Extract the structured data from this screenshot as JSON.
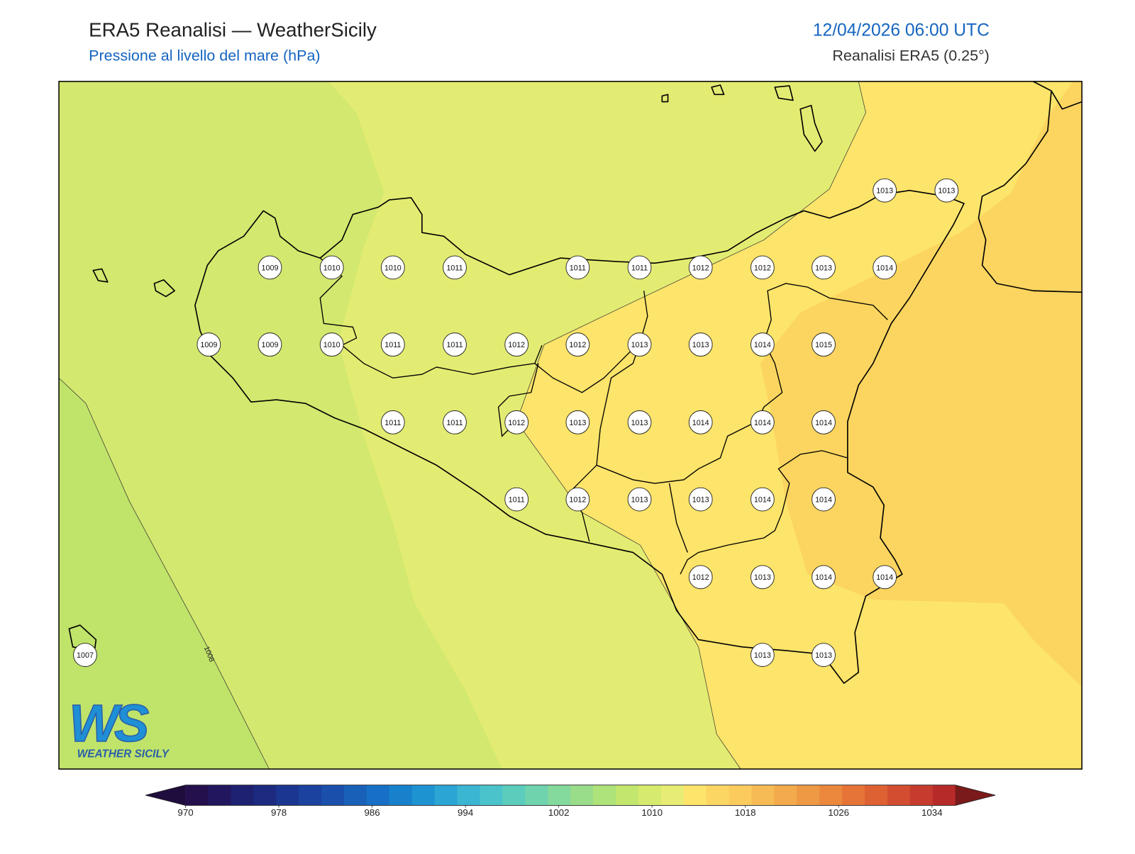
{
  "header": {
    "title": "ERA5 Reanalisi — WeatherSicily",
    "subtitle": "Pressione al livello del mare (hPa)",
    "datetime": "12/04/2026 06:00 UTC",
    "source": "Reanalisi ERA5 (0.25°)"
  },
  "map": {
    "contour_labels": [
      1008
    ],
    "stations": [
      1013,
      1013,
      1009,
      1010,
      1010,
      1011,
      1011,
      1011,
      1012,
      1012,
      1013,
      1014,
      1009,
      1009,
      1010,
      1011,
      1011,
      1012,
      1012,
      1013,
      1013,
      1014,
      1015,
      1011,
      1011,
      1012,
      1013,
      1013,
      1014,
      1014,
      1014,
      1011,
      1012,
      1013,
      1013,
      1014,
      1014,
      1012,
      1013,
      1014,
      1014,
      1007,
      1013,
      1013
    ]
  },
  "colorbar": {
    "clim": [
      970,
      1036
    ],
    "ticks": [
      970,
      978,
      986,
      994,
      1002,
      1010,
      1018,
      1026,
      1034
    ],
    "colors": [
      "#25104e",
      "#22175f",
      "#1e2170",
      "#1c2a80",
      "#1b3690",
      "#1a429e",
      "#1a4fab",
      "#1960b8",
      "#1770c5",
      "#1881cc",
      "#1e93d2",
      "#2aa5d4",
      "#3ab5d2",
      "#4ac3cb",
      "#5ccdbd",
      "#6fd3ad",
      "#84d99c",
      "#99dd8a",
      "#aee27a",
      "#c3e66e",
      "#d6ea6e",
      "#e6ec74",
      "#fde46a",
      "#fbd662",
      "#fbcb5e",
      "#f7bb55",
      "#f2aa4c",
      "#ee9944",
      "#eb883d",
      "#e67437",
      "#de6133",
      "#d34d30",
      "#c63b2d",
      "#b72a2a"
    ],
    "under_color": "#1f0d3d",
    "over_color": "#7a1a1a"
  },
  "logo": {
    "letters": "WS",
    "name": "WEATHER SICILY"
  }
}
